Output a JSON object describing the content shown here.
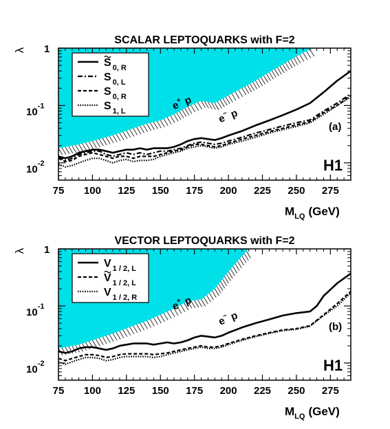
{
  "chart_data": [
    {
      "type": "line",
      "title": "SCALAR LEPTOQUARKS with F=2",
      "xlabel": "M",
      "xlabel_sub": "LQ",
      "xlabel_unit": "(GeV)",
      "ylabel": "λ",
      "xlim": [
        75,
        290
      ],
      "ylim": [
        0.005,
        1.0
      ],
      "yscale": "log",
      "xticks": [
        75,
        100,
        125,
        150,
        175,
        200,
        225,
        250,
        275
      ],
      "yticks": [
        {
          "base": "1",
          "exp": ""
        },
        {
          "base": "10",
          "exp": "-1"
        },
        {
          "base": "10",
          "exp": "-2"
        }
      ],
      "panel_tag": "(a)",
      "experiment": "H1",
      "excluded_region_label": {
        "e": "e",
        "sup": "+",
        "p": "p"
      },
      "region_label": {
        "e": "e",
        "sup": "−",
        "p": "p"
      },
      "fill_color": "#00e0e8",
      "excluded_boundary": {
        "x": [
          75,
          90,
          100,
          110,
          120,
          130,
          140,
          150,
          160,
          170,
          180,
          190,
          200,
          210,
          220,
          230,
          240,
          250,
          260,
          264,
          290
        ],
        "y": [
          0.018,
          0.021,
          0.024,
          0.028,
          0.033,
          0.04,
          0.048,
          0.055,
          0.07,
          0.095,
          0.12,
          0.11,
          0.15,
          0.2,
          0.27,
          0.38,
          0.52,
          0.72,
          0.95,
          1.0,
          1.0
        ]
      },
      "grid": false,
      "legend_position": "top-left",
      "series": [
        {
          "name": "S",
          "tilde": true,
          "sub": "0, R",
          "style": "solid",
          "x": [
            75,
            80,
            85,
            90,
            95,
            100,
            105,
            110,
            115,
            120,
            125,
            130,
            135,
            140,
            145,
            150,
            155,
            160,
            165,
            170,
            175,
            180,
            185,
            190,
            195,
            200,
            210,
            220,
            230,
            240,
            250,
            260,
            270,
            280,
            290
          ],
          "y": [
            0.013,
            0.012,
            0.013,
            0.015,
            0.016,
            0.017,
            0.017,
            0.016,
            0.015,
            0.016,
            0.017,
            0.017,
            0.018,
            0.017,
            0.018,
            0.018,
            0.018,
            0.019,
            0.021,
            0.024,
            0.026,
            0.027,
            0.026,
            0.025,
            0.027,
            0.03,
            0.036,
            0.045,
            0.055,
            0.068,
            0.085,
            0.11,
            0.17,
            0.27,
            0.4
          ]
        },
        {
          "name": "S",
          "tilde": false,
          "sub": "0, L",
          "style": "dashdot",
          "x": [
            75,
            80,
            85,
            90,
            95,
            100,
            105,
            110,
            115,
            120,
            125,
            130,
            135,
            140,
            145,
            150,
            155,
            160,
            165,
            170,
            175,
            180,
            185,
            190,
            195,
            200,
            210,
            220,
            230,
            240,
            250,
            260,
            270,
            280,
            290
          ],
          "y": [
            0.0125,
            0.011,
            0.012,
            0.014,
            0.015,
            0.016,
            0.016,
            0.014,
            0.013,
            0.014,
            0.015,
            0.014,
            0.015,
            0.014,
            0.015,
            0.016,
            0.016,
            0.017,
            0.018,
            0.02,
            0.022,
            0.023,
            0.022,
            0.021,
            0.022,
            0.024,
            0.028,
            0.033,
            0.038,
            0.044,
            0.05,
            0.056,
            0.08,
            0.11,
            0.16
          ]
        },
        {
          "name": "S",
          "tilde": false,
          "sub": "0, R",
          "style": "dashed",
          "x": [
            75,
            80,
            85,
            90,
            95,
            100,
            105,
            110,
            115,
            120,
            125,
            130,
            135,
            140,
            145,
            150,
            155,
            160,
            165,
            170,
            175,
            180,
            185,
            190,
            195,
            200,
            210,
            220,
            230,
            240,
            250,
            260,
            270,
            280,
            290
          ],
          "y": [
            0.012,
            0.0105,
            0.011,
            0.013,
            0.014,
            0.015,
            0.014,
            0.013,
            0.012,
            0.013,
            0.013,
            0.012,
            0.013,
            0.013,
            0.013,
            0.014,
            0.015,
            0.016,
            0.017,
            0.019,
            0.021,
            0.021,
            0.02,
            0.019,
            0.02,
            0.022,
            0.026,
            0.03,
            0.035,
            0.04,
            0.046,
            0.052,
            0.075,
            0.1,
            0.15
          ]
        },
        {
          "name": "S",
          "tilde": false,
          "sub": "1, L",
          "style": "dotted",
          "x": [
            75,
            80,
            85,
            90,
            95,
            100,
            105,
            110,
            115,
            120,
            125,
            130,
            135,
            140,
            145,
            150,
            155,
            160,
            165,
            170,
            175,
            180,
            185,
            190,
            195,
            200,
            210,
            220,
            230,
            240,
            250,
            260,
            270,
            280,
            290
          ],
          "y": [
            0.0095,
            0.0085,
            0.009,
            0.01,
            0.011,
            0.012,
            0.012,
            0.011,
            0.01,
            0.011,
            0.0115,
            0.0105,
            0.011,
            0.011,
            0.0115,
            0.013,
            0.014,
            0.015,
            0.016,
            0.018,
            0.019,
            0.02,
            0.019,
            0.018,
            0.019,
            0.021,
            0.024,
            0.028,
            0.033,
            0.038,
            0.043,
            0.05,
            0.07,
            0.1,
            0.14
          ]
        }
      ]
    },
    {
      "type": "line",
      "title": "VECTOR LEPTOQUARKS with F=2",
      "xlabel": "M",
      "xlabel_sub": "LQ",
      "xlabel_unit": "(GeV)",
      "ylabel": "λ",
      "xlim": [
        75,
        290
      ],
      "ylim": [
        0.005,
        1.0
      ],
      "yscale": "log",
      "xticks": [
        75,
        100,
        125,
        150,
        175,
        200,
        225,
        250,
        275
      ],
      "yticks": [
        {
          "base": "1",
          "exp": ""
        },
        {
          "base": "10",
          "exp": "-1"
        },
        {
          "base": "10",
          "exp": "-2"
        }
      ],
      "panel_tag": "(b)",
      "experiment": "H1",
      "excluded_region_label": {
        "e": "e",
        "sup": "+",
        "p": "p"
      },
      "region_label": {
        "e": "e",
        "sup": "−",
        "p": "p"
      },
      "fill_color": "#00e0e8",
      "excluded_boundary": {
        "x": [
          75,
          90,
          100,
          110,
          120,
          130,
          140,
          150,
          160,
          170,
          180,
          190,
          200,
          210,
          215,
          290
        ],
        "y": [
          0.018,
          0.021,
          0.025,
          0.03,
          0.036,
          0.045,
          0.055,
          0.07,
          0.09,
          0.12,
          0.13,
          0.2,
          0.4,
          0.75,
          1.0,
          1.0
        ]
      },
      "grid": false,
      "legend_position": "top-left",
      "series": [
        {
          "name": "V",
          "tilde": false,
          "sub": "1 / 2, L",
          "style": "solid",
          "x": [
            75,
            80,
            85,
            90,
            95,
            100,
            105,
            110,
            115,
            120,
            125,
            130,
            135,
            140,
            145,
            150,
            155,
            160,
            165,
            170,
            175,
            180,
            185,
            190,
            195,
            200,
            210,
            220,
            230,
            240,
            250,
            260,
            265,
            270,
            280,
            290
          ],
          "y": [
            0.016,
            0.015,
            0.016,
            0.018,
            0.019,
            0.019,
            0.018,
            0.017,
            0.018,
            0.02,
            0.021,
            0.022,
            0.022,
            0.022,
            0.021,
            0.022,
            0.023,
            0.022,
            0.023,
            0.025,
            0.028,
            0.03,
            0.029,
            0.028,
            0.03,
            0.034,
            0.042,
            0.05,
            0.058,
            0.068,
            0.075,
            0.08,
            0.1,
            0.15,
            0.25,
            0.37
          ]
        },
        {
          "name": "V",
          "tilde": true,
          "sub": "1 / 2, L",
          "style": "dashed",
          "x": [
            75,
            80,
            85,
            90,
            95,
            100,
            105,
            110,
            115,
            120,
            125,
            130,
            135,
            140,
            145,
            150,
            155,
            160,
            165,
            170,
            175,
            180,
            185,
            190,
            195,
            200,
            210,
            220,
            230,
            240,
            250,
            260,
            270,
            280,
            290
          ],
          "y": [
            0.012,
            0.011,
            0.012,
            0.013,
            0.014,
            0.014,
            0.0135,
            0.0125,
            0.013,
            0.014,
            0.0145,
            0.0145,
            0.0145,
            0.0145,
            0.014,
            0.0145,
            0.015,
            0.016,
            0.017,
            0.018,
            0.019,
            0.02,
            0.019,
            0.019,
            0.02,
            0.022,
            0.026,
            0.03,
            0.034,
            0.038,
            0.04,
            0.045,
            0.07,
            0.11,
            0.18
          ]
        },
        {
          "name": "V",
          "tilde": false,
          "sub": "1 / 2, R",
          "style": "dotted",
          "x": [
            75,
            80,
            85,
            90,
            95,
            100,
            105,
            110,
            115,
            120,
            125,
            130,
            135,
            140,
            145,
            150,
            155,
            160,
            165,
            170,
            175,
            180,
            185,
            190,
            195,
            200,
            210,
            220,
            230,
            240,
            250,
            260,
            270,
            280,
            290
          ],
          "y": [
            0.0105,
            0.0095,
            0.0105,
            0.0115,
            0.0125,
            0.0125,
            0.012,
            0.011,
            0.0115,
            0.0125,
            0.013,
            0.013,
            0.013,
            0.013,
            0.0125,
            0.013,
            0.014,
            0.015,
            0.016,
            0.017,
            0.018,
            0.019,
            0.018,
            0.018,
            0.019,
            0.021,
            0.025,
            0.029,
            0.033,
            0.037,
            0.039,
            0.044,
            0.068,
            0.1,
            0.17
          ]
        }
      ]
    }
  ]
}
